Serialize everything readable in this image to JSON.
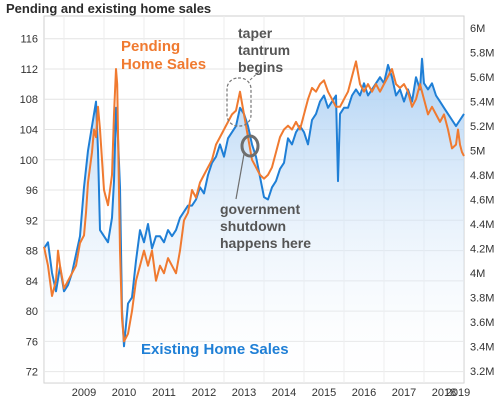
{
  "chart_data": {
    "type": "line",
    "title": "Pending and existing home sales",
    "x_ticks": [
      "2009",
      "2010",
      "2011",
      "2012",
      "2013",
      "2014",
      "2015",
      "2016",
      "2017",
      "2018",
      "2019"
    ],
    "y_left_ticks": [
      "72",
      "76",
      "80",
      "84",
      "88",
      "92",
      "96",
      "100",
      "104",
      "108",
      "112",
      "116"
    ],
    "y_right_ticks": [
      "3.2M",
      "3.4M",
      "3.6M",
      "3.8M",
      "4M",
      "4.2M",
      "4.4M",
      "4.6M",
      "4.8M",
      "5M",
      "5.2M",
      "5.4M",
      "5.6M",
      "5.8M",
      "6M"
    ],
    "xlim": [
      2008.5,
      2019.0
    ],
    "ylim_left": [
      70.5,
      119
    ],
    "ylim_right": [
      3.1,
      6.1
    ],
    "grid": true,
    "annotations": {
      "pending_label": [
        "Pending",
        "Home Sales"
      ],
      "existing_label": "Existing Home Sales",
      "taper_label": [
        "taper",
        "tantrum",
        "begins"
      ],
      "shutdown_label": [
        "government",
        "shutdown",
        "happens here"
      ]
    },
    "series": [
      {
        "name": "Pending Home Sales",
        "axis": "left",
        "color": "#f07a30",
        "points": [
          [
            2008.5,
            88.5
          ],
          [
            2008.6,
            86
          ],
          [
            2008.7,
            82
          ],
          [
            2008.8,
            84
          ],
          [
            2008.85,
            88
          ],
          [
            2008.9,
            86
          ],
          [
            2009.0,
            83
          ],
          [
            2009.1,
            84
          ],
          [
            2009.2,
            85
          ],
          [
            2009.3,
            86
          ],
          [
            2009.4,
            89
          ],
          [
            2009.5,
            90
          ],
          [
            2009.55,
            93
          ],
          [
            2009.6,
            97
          ],
          [
            2009.7,
            101
          ],
          [
            2009.75,
            104
          ],
          [
            2009.8,
            103
          ],
          [
            2009.85,
            107
          ],
          [
            2009.9,
            104
          ],
          [
            2010.0,
            96
          ],
          [
            2010.1,
            94
          ],
          [
            2010.2,
            98
          ],
          [
            2010.25,
            106
          ],
          [
            2010.3,
            112
          ],
          [
            2010.33,
            110
          ],
          [
            2010.4,
            88
          ],
          [
            2010.45,
            79
          ],
          [
            2010.5,
            76
          ],
          [
            2010.6,
            77
          ],
          [
            2010.7,
            80
          ],
          [
            2010.8,
            84
          ],
          [
            2010.9,
            86
          ],
          [
            2011.0,
            88
          ],
          [
            2011.1,
            86
          ],
          [
            2011.2,
            88
          ],
          [
            2011.3,
            84
          ],
          [
            2011.4,
            86
          ],
          [
            2011.5,
            85
          ],
          [
            2011.6,
            87
          ],
          [
            2011.7,
            86
          ],
          [
            2011.8,
            85
          ],
          [
            2011.9,
            88
          ],
          [
            2012.0,
            92
          ],
          [
            2012.1,
            93
          ],
          [
            2012.2,
            96
          ],
          [
            2012.3,
            95
          ],
          [
            2012.4,
            97
          ],
          [
            2012.5,
            98
          ],
          [
            2012.6,
            99
          ],
          [
            2012.7,
            100
          ],
          [
            2012.8,
            102
          ],
          [
            2012.9,
            103
          ],
          [
            2013.0,
            104
          ],
          [
            2013.1,
            105
          ],
          [
            2013.2,
            106
          ],
          [
            2013.3,
            106.5
          ],
          [
            2013.4,
            109
          ],
          [
            2013.5,
            106
          ],
          [
            2013.6,
            103
          ],
          [
            2013.7,
            100
          ],
          [
            2013.8,
            99
          ],
          [
            2013.9,
            98
          ],
          [
            2014.0,
            97.5
          ],
          [
            2014.1,
            98
          ],
          [
            2014.2,
            99
          ],
          [
            2014.3,
            101
          ],
          [
            2014.4,
            103
          ],
          [
            2014.5,
            104
          ],
          [
            2014.6,
            104.5
          ],
          [
            2014.7,
            104
          ],
          [
            2014.8,
            105
          ],
          [
            2014.9,
            104
          ],
          [
            2015.0,
            106
          ],
          [
            2015.1,
            108
          ],
          [
            2015.2,
            109.5
          ],
          [
            2015.3,
            109
          ],
          [
            2015.4,
            110
          ],
          [
            2015.5,
            110.5
          ],
          [
            2015.6,
            109
          ],
          [
            2015.7,
            108
          ],
          [
            2015.8,
            107
          ],
          [
            2015.9,
            107
          ],
          [
            2016.0,
            108
          ],
          [
            2016.1,
            109
          ],
          [
            2016.2,
            111
          ],
          [
            2016.3,
            113
          ],
          [
            2016.4,
            110
          ],
          [
            2016.5,
            109
          ],
          [
            2016.6,
            110
          ],
          [
            2016.7,
            109
          ],
          [
            2016.8,
            110
          ],
          [
            2016.9,
            109
          ],
          [
            2017.0,
            110
          ],
          [
            2017.1,
            111
          ],
          [
            2017.2,
            112
          ],
          [
            2017.3,
            110
          ],
          [
            2017.4,
            109.5
          ],
          [
            2017.5,
            110
          ],
          [
            2017.6,
            109
          ],
          [
            2017.7,
            107
          ],
          [
            2017.8,
            108
          ],
          [
            2017.9,
            110
          ],
          [
            2018.0,
            108
          ],
          [
            2018.1,
            106
          ],
          [
            2018.2,
            107
          ],
          [
            2018.3,
            106
          ],
          [
            2018.4,
            105
          ],
          [
            2018.5,
            106
          ],
          [
            2018.6,
            104
          ],
          [
            2018.7,
            101.5
          ],
          [
            2018.8,
            102
          ],
          [
            2018.85,
            104
          ],
          [
            2018.9,
            102
          ],
          [
            2018.95,
            101
          ],
          [
            2019.0,
            100.5
          ]
        ]
      },
      {
        "name": "Existing Home Sales",
        "axis": "right",
        "color": "#1f7fd6",
        "points": [
          [
            2008.5,
            4.2
          ],
          [
            2008.6,
            4.25
          ],
          [
            2008.7,
            4.0
          ],
          [
            2008.8,
            3.85
          ],
          [
            2008.9,
            4.05
          ],
          [
            2009.0,
            3.85
          ],
          [
            2009.1,
            3.9
          ],
          [
            2009.2,
            4.0
          ],
          [
            2009.3,
            4.15
          ],
          [
            2009.4,
            4.3
          ],
          [
            2009.5,
            4.7
          ],
          [
            2009.6,
            5.0
          ],
          [
            2009.7,
            5.2
          ],
          [
            2009.8,
            5.4
          ],
          [
            2009.85,
            5.0
          ],
          [
            2009.9,
            4.35
          ],
          [
            2010.0,
            4.3
          ],
          [
            2010.1,
            4.25
          ],
          [
            2010.2,
            4.45
          ],
          [
            2010.25,
            4.75
          ],
          [
            2010.3,
            5.35
          ],
          [
            2010.35,
            5.1
          ],
          [
            2010.4,
            4.7
          ],
          [
            2010.45,
            3.7
          ],
          [
            2010.5,
            3.4
          ],
          [
            2010.6,
            3.75
          ],
          [
            2010.7,
            3.8
          ],
          [
            2010.8,
            4.1
          ],
          [
            2010.9,
            4.35
          ],
          [
            2011.0,
            4.25
          ],
          [
            2011.1,
            4.4
          ],
          [
            2011.2,
            4.2
          ],
          [
            2011.3,
            4.3
          ],
          [
            2011.4,
            4.3
          ],
          [
            2011.5,
            4.25
          ],
          [
            2011.6,
            4.35
          ],
          [
            2011.7,
            4.3
          ],
          [
            2011.8,
            4.35
          ],
          [
            2011.9,
            4.45
          ],
          [
            2012.0,
            4.5
          ],
          [
            2012.1,
            4.55
          ],
          [
            2012.2,
            4.55
          ],
          [
            2012.3,
            4.6
          ],
          [
            2012.4,
            4.7
          ],
          [
            2012.5,
            4.65
          ],
          [
            2012.6,
            4.8
          ],
          [
            2012.7,
            4.9
          ],
          [
            2012.8,
            4.95
          ],
          [
            2012.9,
            5.05
          ],
          [
            2013.0,
            4.95
          ],
          [
            2013.1,
            5.1
          ],
          [
            2013.2,
            5.15
          ],
          [
            2013.3,
            5.2
          ],
          [
            2013.4,
            5.35
          ],
          [
            2013.5,
            5.3
          ],
          [
            2013.6,
            5.2
          ],
          [
            2013.7,
            5.05
          ],
          [
            2013.8,
            4.95
          ],
          [
            2014.0,
            4.62
          ],
          [
            2014.1,
            4.6
          ],
          [
            2014.2,
            4.7
          ],
          [
            2014.3,
            4.75
          ],
          [
            2014.4,
            4.85
          ],
          [
            2014.5,
            4.9
          ],
          [
            2014.6,
            5.1
          ],
          [
            2014.7,
            5.05
          ],
          [
            2014.8,
            5.15
          ],
          [
            2014.9,
            5.2
          ],
          [
            2015.0,
            5.15
          ],
          [
            2015.1,
            5.05
          ],
          [
            2015.2,
            5.25
          ],
          [
            2015.3,
            5.3
          ],
          [
            2015.4,
            5.4
          ],
          [
            2015.5,
            5.45
          ],
          [
            2015.6,
            5.35
          ],
          [
            2015.7,
            5.4
          ],
          [
            2015.8,
            5.45
          ],
          [
            2015.85,
            4.75
          ],
          [
            2015.9,
            5.3
          ],
          [
            2016.0,
            5.35
          ],
          [
            2016.1,
            5.35
          ],
          [
            2016.2,
            5.45
          ],
          [
            2016.3,
            5.5
          ],
          [
            2016.4,
            5.45
          ],
          [
            2016.5,
            5.55
          ],
          [
            2016.6,
            5.45
          ],
          [
            2016.7,
            5.5
          ],
          [
            2016.8,
            5.55
          ],
          [
            2016.9,
            5.6
          ],
          [
            2017.0,
            5.55
          ],
          [
            2017.1,
            5.7
          ],
          [
            2017.2,
            5.6
          ],
          [
            2017.3,
            5.45
          ],
          [
            2017.4,
            5.5
          ],
          [
            2017.5,
            5.4
          ],
          [
            2017.6,
            5.5
          ],
          [
            2017.7,
            5.4
          ],
          [
            2017.8,
            5.6
          ],
          [
            2017.9,
            5.5
          ],
          [
            2017.95,
            5.75
          ],
          [
            2018.0,
            5.55
          ],
          [
            2018.1,
            5.5
          ],
          [
            2018.2,
            5.55
          ],
          [
            2018.3,
            5.45
          ],
          [
            2018.4,
            5.4
          ],
          [
            2018.5,
            5.35
          ],
          [
            2018.6,
            5.3
          ],
          [
            2018.7,
            5.25
          ],
          [
            2018.8,
            5.2
          ],
          [
            2018.9,
            5.25
          ],
          [
            2019.0,
            5.3
          ]
        ]
      }
    ]
  }
}
